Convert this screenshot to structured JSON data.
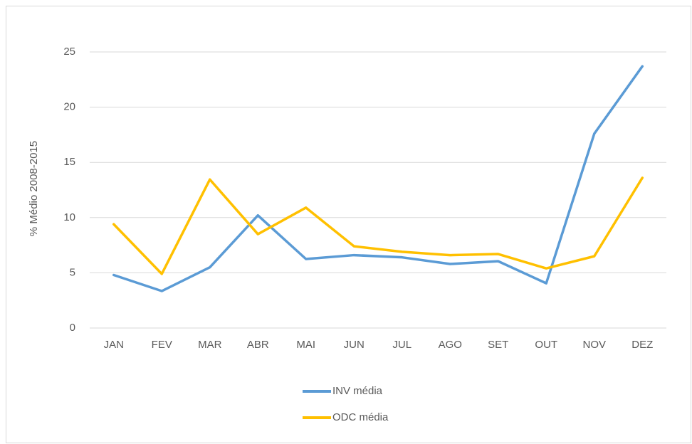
{
  "chart_data": {
    "type": "line",
    "ylabel": "% Médio 2008-2015",
    "categories": [
      "JAN",
      "FEV",
      "MAR",
      "ABR",
      "MAI",
      "JUN",
      "JUL",
      "AGO",
      "SET",
      "OUT",
      "NOV",
      "DEZ"
    ],
    "series": [
      {
        "name": "INV média",
        "color": "#5b9bd5",
        "values": [
          4.8,
          3.35,
          5.5,
          10.2,
          6.25,
          6.6,
          6.4,
          5.8,
          6.05,
          4.05,
          17.6,
          23.7
        ]
      },
      {
        "name": "ODC média",
        "color": "#ffc000",
        "values": [
          9.4,
          4.9,
          13.45,
          8.5,
          10.9,
          7.4,
          6.9,
          6.6,
          6.7,
          5.4,
          6.5,
          13.6
        ]
      }
    ],
    "ylim": [
      0,
      25
    ],
    "yticks": [
      0,
      5,
      10,
      15,
      20,
      25
    ],
    "grid": true,
    "legend": "bottom"
  }
}
